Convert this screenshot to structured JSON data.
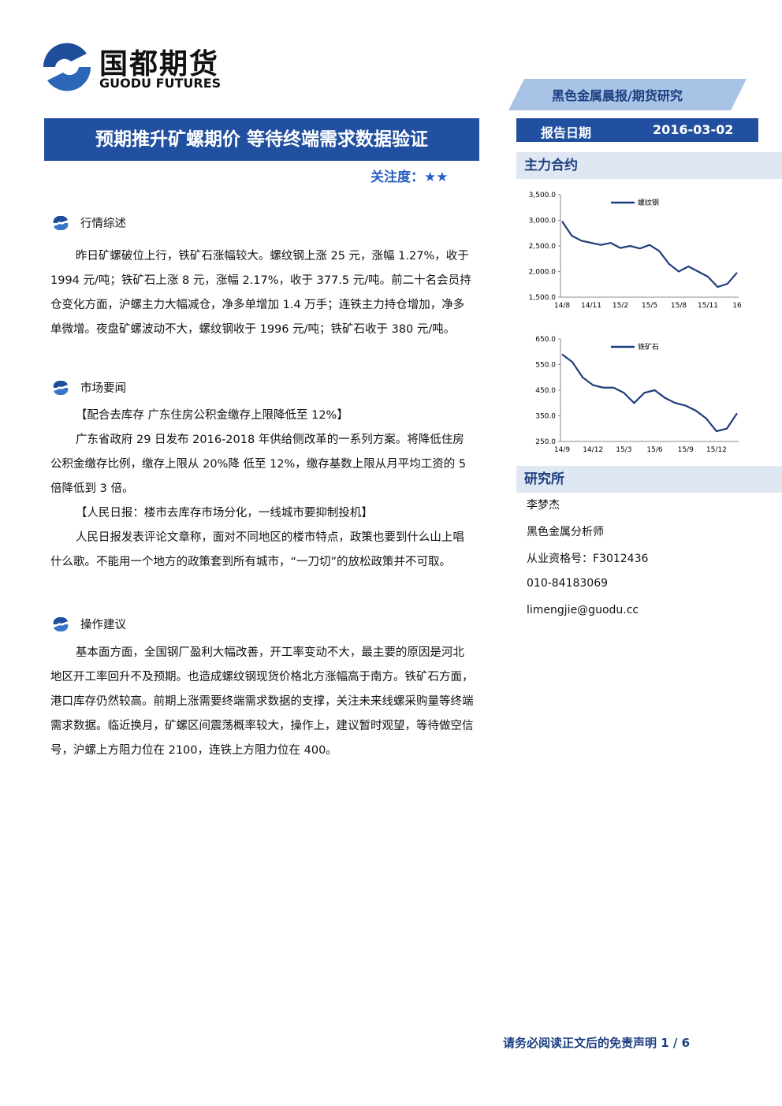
{
  "header": {
    "logo_cn": "国都期货",
    "logo_en": "GUODU FUTURES",
    "category": "黑色金属晨报/期货研究",
    "title": "预期推升矿螺期价 等待终端需求数据验证",
    "attention": "关注度：★★",
    "date_label": "报告日期",
    "date": "2016-03-02"
  },
  "sections": [
    {
      "heading": "行情综述",
      "paragraphs": [
        "昨日矿螺破位上行，铁矿石涨幅较大。螺纹钢上涨 25 元，涨幅 1.27%，收于 1994 元/吨；铁矿石上涨 8 元，涨幅 2.17%，收于 377.5 元/吨。前二十名会员持仓变化方面，沪螺主力大幅减仓，净多单增加 1.4 万手；连铁主力持仓增加，净多单微增。夜盘矿螺波动不大，螺纹钢收于 1996 元/吨；铁矿石收于 380 元/吨。"
      ]
    },
    {
      "heading": "市场要闻",
      "paragraphs": [
        "【配合去库存 广东住房公积金缴存上限降低至 12%】",
        "广东省政府 29 日发布 2016-2018 年供给侧改革的一系列方案。将降低住房公积金缴存比例，缴存上限从 20%降 低至 12%，缴存基数上限从月平均工资的 5 倍降低到 3 倍。",
        "【人民日报：楼市去库存市场分化，一线城市要抑制投机】",
        "人民日报发表评论文章称，面对不同地区的楼市特点，政策也要到什么山上唱什么歌。不能用一个地方的政策套到所有城市，“一刀切”的放松政策并不可取。"
      ]
    },
    {
      "heading": "操作建议",
      "paragraphs": [
        "基本面方面，全国钢厂盈利大幅改善，开工率变动不大，最主要的原因是河北地区开工率回升不及预期。也造成螺纹钢现货价格北方涨幅高于南方。铁矿石方面，港口库存仍然较高。前期上涨需要终端需求数据的支撑，关注未来线螺采购量等终端需求数据。临近换月，矿螺区间震荡概率较大，操作上，建议暂时观望，等待做空信号，沪螺上方阻力位在 2100，连铁上方阻力位在 400。"
      ]
    }
  ],
  "sidebar": {
    "contracts_heading": "主力合约",
    "institute_heading": "研究所",
    "analyst": [
      "李梦杰",
      "黑色金属分析师",
      "从业资格号：F3012436",
      "010-84183069",
      "limengjie@guodu.cc"
    ]
  },
  "chart_data": [
    {
      "type": "line",
      "categories": [
        "14/8",
        null,
        null,
        "14/11",
        null,
        null,
        "15/2",
        null,
        null,
        "15/5",
        null,
        null,
        "15/8",
        null,
        null,
        "15/11",
        null,
        null,
        "16"
      ],
      "series": [
        {
          "name": "螺纹钢",
          "color": "#1f3d7a",
          "values": [
            2980,
            2700,
            2600,
            2560,
            2520,
            2560,
            2460,
            2500,
            2450,
            2520,
            2400,
            2150,
            2000,
            2100,
            2000,
            1900,
            1700,
            1760,
            1980
          ]
        }
      ],
      "ylim": [
        1500,
        3500
      ],
      "yticks": [
        {
          "value": 1500,
          "label": "1,500.0"
        },
        {
          "value": 2000,
          "label": "2,000.0"
        },
        {
          "value": 2500,
          "label": "2,500.0"
        },
        {
          "value": 3000,
          "label": "3,000.0"
        },
        {
          "value": 3500,
          "label": "3,500.0"
        }
      ]
    },
    {
      "type": "line",
      "categories": [
        "14/9",
        null,
        null,
        "14/12",
        null,
        null,
        "15/3",
        null,
        null,
        "15/6",
        null,
        null,
        "15/9",
        null,
        null,
        "15/12",
        null,
        null
      ],
      "series": [
        {
          "name": "铁矿石",
          "color": "#1f3d7a",
          "values": [
            590,
            560,
            500,
            470,
            460,
            460,
            440,
            400,
            440,
            450,
            420,
            400,
            390,
            370,
            340,
            290,
            300,
            360
          ]
        }
      ],
      "ylim": [
        250,
        650
      ],
      "yticks": [
        {
          "value": 250,
          "label": "250.0"
        },
        {
          "value": 350,
          "label": "350.0"
        },
        {
          "value": 450,
          "label": "450.0"
        },
        {
          "value": 550,
          "label": "550.0"
        },
        {
          "value": 650,
          "label": "650.0"
        }
      ]
    }
  ],
  "footer": {
    "disclaimer": "请务必阅读正文后的免责声明 1 / 6"
  }
}
